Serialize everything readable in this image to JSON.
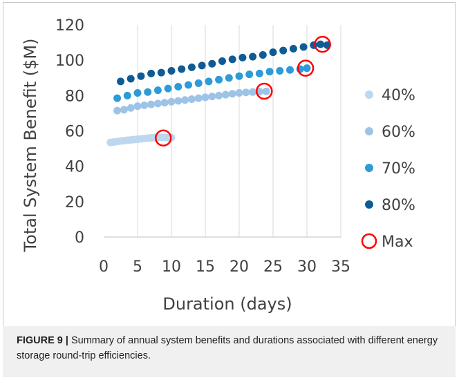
{
  "chart_data": {
    "type": "scatter",
    "xlabel": "Duration (days)",
    "ylabel": "Total System Benefit ($M)",
    "xlim": [
      0,
      35
    ],
    "ylim": [
      0,
      120
    ],
    "xticks": [
      0,
      5,
      10,
      15,
      20,
      25,
      30,
      35
    ],
    "yticks": [
      0,
      20,
      40,
      60,
      80,
      100,
      120
    ],
    "grid": "vertical gridlines",
    "legend_position": "right",
    "series": [
      {
        "name": "40%",
        "color": "#bdd7ee",
        "marker": "filled-circle",
        "x": [
          1,
          1.5,
          2,
          2.5,
          3,
          3.5,
          4,
          4.5,
          5,
          5.5,
          6,
          6.5,
          7,
          7.5,
          8,
          8.5,
          9,
          9.5,
          10
        ],
        "y": [
          53.5,
          53.7,
          54,
          54.3,
          54.5,
          54.7,
          54.9,
          55.1,
          55.3,
          55.5,
          55.7,
          55.9,
          56.1,
          56.2,
          56.3,
          56.4,
          56.4,
          56.3,
          56.2
        ]
      },
      {
        "name": "60%",
        "color": "#9dc3e6",
        "marker": "filled-circle",
        "x": [
          2,
          3,
          4,
          5,
          6,
          7,
          8,
          9,
          10,
          11,
          12,
          13,
          14,
          15,
          16,
          17,
          18,
          19,
          20,
          21,
          22,
          23,
          24
        ],
        "y": [
          71.5,
          72,
          73,
          74,
          74.5,
          75,
          75.5,
          76,
          76.5,
          77,
          77.5,
          78,
          78.5,
          79,
          79.5,
          80,
          80.5,
          81,
          81.5,
          81.8,
          82,
          82.2,
          82.4
        ]
      },
      {
        "name": "70%",
        "color": "#2e9ad8",
        "marker": "filled-circle",
        "x": [
          2,
          3.5,
          5,
          6.5,
          8,
          9.5,
          11,
          12.5,
          14,
          15.5,
          17,
          18.5,
          20,
          21.5,
          23,
          24.5,
          26,
          27.5,
          29,
          30
        ],
        "y": [
          78.5,
          80,
          81.5,
          82,
          83,
          84,
          85,
          86,
          87,
          88,
          89,
          90,
          91,
          92,
          92.5,
          93.5,
          94,
          94.5,
          95,
          95.5
        ]
      },
      {
        "name": "80%",
        "color": "#0f5b96",
        "marker": "filled-circle",
        "x": [
          2.5,
          4,
          5.5,
          7,
          8.5,
          10,
          11.5,
          13,
          14.5,
          16,
          17.5,
          19,
          20.5,
          22,
          23.5,
          25,
          26.5,
          28,
          29.5,
          31,
          32,
          33
        ],
        "y": [
          88,
          89.5,
          91,
          92.5,
          93,
          94,
          95,
          96,
          97,
          98,
          99.5,
          100.5,
          101.5,
          102,
          103,
          104.5,
          105.5,
          106.5,
          107.5,
          108.5,
          109,
          108.5
        ]
      },
      {
        "name": "Max",
        "color": "#ff0000",
        "marker": "open-circle",
        "x": [
          8.8,
          23.7,
          29.8,
          32.3
        ],
        "y": [
          56,
          82.5,
          95.5,
          109
        ]
      }
    ]
  },
  "caption": {
    "label": "FIGURE 9 |",
    "text": " Summary of annual system benefits and durations associated with different energy storage round-trip efficiencies."
  }
}
